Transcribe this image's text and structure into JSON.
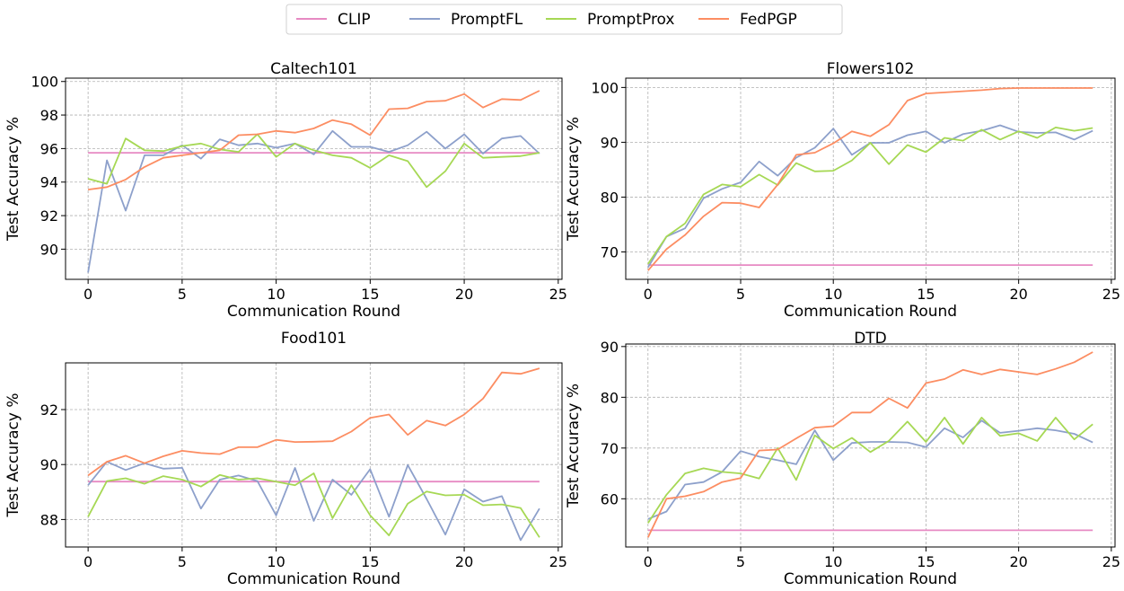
{
  "colors": {
    "CLIP": "#e78ac3",
    "PromptFL": "#8da0cb",
    "PromptProx": "#a6d854",
    "FedPGP": "#fc8d62"
  },
  "legend": [
    "CLIP",
    "PromptFL",
    "PromptProx",
    "FedPGP"
  ],
  "chart_data": [
    {
      "type": "line",
      "title": "Caltech101",
      "xlabel": "Communication Round",
      "ylabel": "Test Accuracy %",
      "xlim": [
        -1.2,
        25.2
      ],
      "ylim": [
        88.2,
        100.2
      ],
      "xticks": [
        0,
        5,
        10,
        15,
        20,
        25
      ],
      "yticks": [
        90,
        92,
        94,
        96,
        98,
        100
      ],
      "grid": true,
      "x": [
        0,
        1,
        2,
        3,
        4,
        5,
        6,
        7,
        8,
        9,
        10,
        11,
        12,
        13,
        14,
        15,
        16,
        17,
        18,
        19,
        20,
        21,
        22,
        23,
        24
      ],
      "series": [
        {
          "name": "CLIP",
          "values": [
            95.75,
            95.75,
            95.75,
            95.75,
            95.75,
            95.75,
            95.75,
            95.75,
            95.75,
            95.75,
            95.75,
            95.75,
            95.75,
            95.75,
            95.75,
            95.75,
            95.75,
            95.75,
            95.75,
            95.75,
            95.75,
            95.75,
            95.75,
            95.75,
            95.75
          ]
        },
        {
          "name": "PromptFL",
          "values": [
            88.6,
            95.3,
            92.3,
            95.6,
            95.6,
            96.2,
            95.4,
            96.55,
            96.2,
            96.3,
            96.05,
            96.3,
            95.65,
            97.05,
            96.1,
            96.1,
            95.8,
            96.2,
            97.0,
            96.0,
            96.85,
            95.7,
            96.6,
            96.75,
            95.7
          ]
        },
        {
          "name": "PromptProx",
          "values": [
            94.2,
            93.9,
            96.6,
            95.9,
            95.85,
            96.15,
            96.3,
            95.95,
            95.8,
            96.85,
            95.5,
            96.3,
            95.9,
            95.6,
            95.45,
            94.85,
            95.6,
            95.25,
            93.7,
            94.65,
            96.3,
            95.45,
            95.5,
            95.55,
            95.75
          ]
        },
        {
          "name": "FedPGP",
          "values": [
            93.55,
            93.7,
            94.15,
            94.9,
            95.45,
            95.6,
            95.75,
            95.9,
            96.8,
            96.85,
            97.05,
            96.95,
            97.2,
            97.7,
            97.45,
            96.8,
            98.35,
            98.4,
            98.8,
            98.85,
            99.25,
            98.45,
            98.95,
            98.9,
            99.45
          ]
        }
      ]
    },
    {
      "type": "line",
      "title": "Flowers102",
      "xlabel": "Communication Round",
      "ylabel": "Test Accuracy %",
      "xlim": [
        -1.2,
        25.2
      ],
      "ylim": [
        65.0,
        101.7
      ],
      "xticks": [
        0,
        5,
        10,
        15,
        20,
        25
      ],
      "yticks": [
        70,
        80,
        90,
        100
      ],
      "grid": true,
      "x": [
        0,
        1,
        2,
        3,
        4,
        5,
        6,
        7,
        8,
        9,
        10,
        11,
        12,
        13,
        14,
        15,
        16,
        17,
        18,
        19,
        20,
        21,
        22,
        23,
        24
      ],
      "series": [
        {
          "name": "CLIP",
          "values": [
            67.6,
            67.6,
            67.6,
            67.6,
            67.6,
            67.6,
            67.6,
            67.6,
            67.6,
            67.6,
            67.6,
            67.6,
            67.6,
            67.6,
            67.6,
            67.6,
            67.6,
            67.6,
            67.6,
            67.6,
            67.6,
            67.6,
            67.6,
            67.6,
            67.6
          ]
        },
        {
          "name": "PromptFL",
          "values": [
            67.2,
            72.8,
            74.3,
            79.8,
            81.5,
            82.7,
            86.5,
            83.9,
            87.2,
            89.0,
            92.5,
            87.7,
            89.9,
            89.9,
            91.3,
            92.0,
            89.9,
            91.5,
            92.1,
            93.1,
            91.9,
            91.7,
            91.8,
            90.5,
            92.1
          ]
        },
        {
          "name": "PromptProx",
          "values": [
            67.8,
            72.8,
            75.2,
            80.5,
            82.3,
            81.9,
            84.1,
            82.2,
            86.2,
            84.7,
            84.8,
            86.7,
            89.9,
            86.0,
            89.5,
            88.2,
            90.8,
            90.3,
            92.3,
            90.5,
            92.0,
            90.8,
            92.7,
            92.1,
            92.6
          ]
        },
        {
          "name": "FedPGP",
          "values": [
            66.6,
            70.5,
            73.1,
            76.5,
            79.0,
            78.9,
            78.1,
            82.3,
            87.7,
            88.1,
            89.8,
            92.0,
            91.1,
            93.2,
            97.6,
            98.9,
            99.1,
            99.3,
            99.5,
            99.8,
            99.9,
            99.9,
            99.9,
            99.9,
            99.9
          ]
        }
      ]
    },
    {
      "type": "line",
      "title": "Food101",
      "xlabel": "Communication Round",
      "ylabel": "Test Accuracy %",
      "xlim": [
        -1.2,
        25.2
      ],
      "ylim": [
        87.0,
        93.7
      ],
      "xticks": [
        0,
        5,
        10,
        15,
        20,
        25
      ],
      "yticks": [
        88,
        90,
        92
      ],
      "grid": true,
      "x": [
        0,
        1,
        2,
        3,
        4,
        5,
        6,
        7,
        8,
        9,
        10,
        11,
        12,
        13,
        14,
        15,
        16,
        17,
        18,
        19,
        20,
        21,
        22,
        23,
        24
      ],
      "series": [
        {
          "name": "CLIP",
          "values": [
            89.38,
            89.38,
            89.38,
            89.38,
            89.38,
            89.38,
            89.38,
            89.38,
            89.38,
            89.38,
            89.38,
            89.38,
            89.38,
            89.38,
            89.38,
            89.38,
            89.38,
            89.38,
            89.38,
            89.38,
            89.38,
            89.38,
            89.38,
            89.38,
            89.38
          ]
        },
        {
          "name": "PromptFL",
          "values": [
            89.25,
            90.1,
            89.8,
            90.05,
            89.85,
            89.88,
            88.4,
            89.45,
            89.6,
            89.4,
            88.15,
            89.88,
            87.95,
            89.45,
            88.9,
            89.83,
            88.1,
            89.98,
            88.75,
            87.45,
            89.1,
            88.65,
            88.85,
            87.25,
            88.4
          ]
        },
        {
          "name": "PromptProx",
          "values": [
            88.1,
            89.4,
            89.5,
            89.3,
            89.58,
            89.45,
            89.2,
            89.62,
            89.45,
            89.5,
            89.38,
            89.25,
            89.68,
            88.05,
            89.25,
            88.15,
            87.42,
            88.58,
            89.02,
            88.88,
            88.9,
            88.52,
            88.55,
            88.42,
            87.35
          ]
        },
        {
          "name": "FedPGP",
          "values": [
            89.6,
            90.1,
            90.32,
            90.05,
            90.3,
            90.5,
            90.42,
            90.38,
            90.63,
            90.63,
            90.9,
            90.82,
            90.83,
            90.85,
            91.2,
            91.7,
            91.82,
            91.08,
            91.6,
            91.42,
            91.82,
            92.4,
            93.35,
            93.3,
            93.5
          ]
        }
      ]
    },
    {
      "type": "line",
      "title": "DTD",
      "xlabel": "Communication Round",
      "ylabel": "Test Accuracy %",
      "xlim": [
        -1.2,
        25.2
      ],
      "ylim": [
        50.5,
        90.5
      ],
      "xticks": [
        0,
        5,
        10,
        15,
        20,
        25
      ],
      "yticks": [
        60,
        70,
        80,
        90
      ],
      "grid": true,
      "x": [
        0,
        1,
        2,
        3,
        4,
        5,
        6,
        7,
        8,
        9,
        10,
        11,
        12,
        13,
        14,
        15,
        16,
        17,
        18,
        19,
        20,
        21,
        22,
        23,
        24
      ],
      "series": [
        {
          "name": "CLIP",
          "values": [
            53.8,
            53.8,
            53.8,
            53.8,
            53.8,
            53.8,
            53.8,
            53.8,
            53.8,
            53.8,
            53.8,
            53.8,
            53.8,
            53.8,
            53.8,
            53.8,
            53.8,
            53.8,
            53.8,
            53.8,
            53.8,
            53.8,
            53.8,
            53.8,
            53.8
          ]
        },
        {
          "name": "PromptFL",
          "values": [
            56.0,
            57.5,
            62.8,
            63.3,
            65.3,
            69.4,
            68.3,
            67.6,
            66.8,
            73.5,
            67.6,
            71.0,
            71.2,
            71.2,
            71.1,
            70.2,
            73.9,
            72.1,
            75.4,
            73.0,
            73.4,
            73.9,
            73.5,
            72.8,
            71.1
          ]
        },
        {
          "name": "PromptProx",
          "values": [
            55.2,
            60.8,
            65.0,
            66.0,
            65.3,
            65.0,
            64.0,
            70.0,
            63.7,
            72.5,
            69.9,
            72.0,
            69.2,
            71.4,
            75.2,
            71.2,
            76.0,
            70.8,
            76.0,
            72.4,
            72.9,
            71.4,
            76.0,
            71.7,
            74.7
          ]
        },
        {
          "name": "FedPGP",
          "values": [
            52.4,
            60.0,
            60.5,
            61.4,
            63.3,
            64.1,
            69.5,
            69.7,
            71.9,
            74.0,
            74.3,
            77.0,
            77.0,
            79.8,
            77.9,
            82.8,
            83.6,
            85.4,
            84.5,
            85.5,
            85.0,
            84.5,
            85.6,
            86.9,
            88.9
          ]
        }
      ]
    }
  ]
}
